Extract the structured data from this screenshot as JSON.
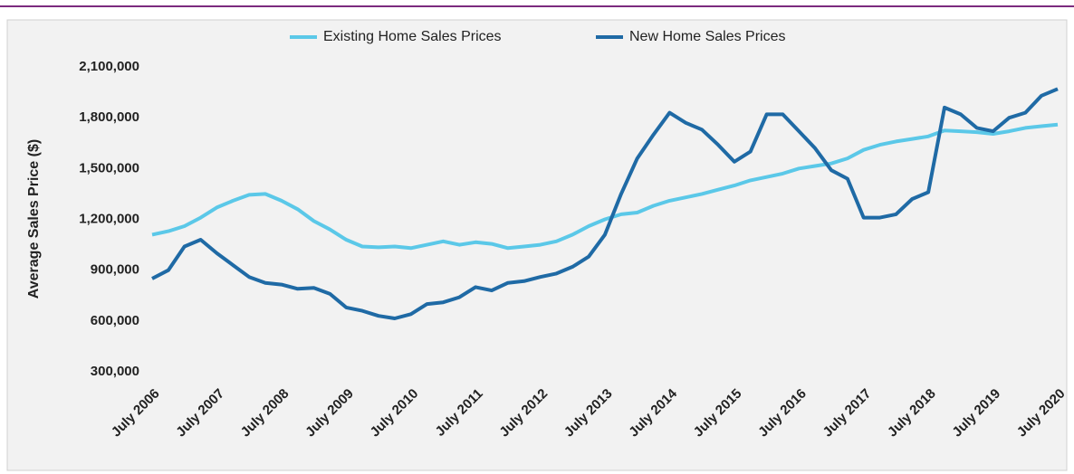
{
  "chart_data": {
    "type": "line",
    "y_label": "Average Sales Price ($)",
    "categories": [
      "July 2006",
      null,
      null,
      null,
      "July 2007",
      null,
      null,
      null,
      "July 2008",
      null,
      null,
      null,
      "July 2009",
      null,
      null,
      null,
      "July 2010",
      null,
      null,
      null,
      "July 2011",
      null,
      null,
      null,
      "July 2012",
      null,
      null,
      null,
      "July 2013",
      null,
      null,
      null,
      "July 2014",
      null,
      null,
      null,
      "July 2015",
      null,
      null,
      null,
      "July 2016",
      null,
      null,
      null,
      "July 2017",
      null,
      null,
      null,
      "July 2018",
      null,
      null,
      null,
      "July 2019",
      null,
      null,
      null,
      "July 2020"
    ],
    "series": [
      {
        "name": "Existing Home Sales Prices",
        "color": "#5bc8e8",
        "values": [
          1110000,
          1130000,
          1160000,
          1210000,
          1270000,
          1310000,
          1345000,
          1350000,
          1310000,
          1260000,
          1190000,
          1140000,
          1080000,
          1040000,
          1035000,
          1040000,
          1030000,
          1050000,
          1070000,
          1050000,
          1065000,
          1055000,
          1030000,
          1040000,
          1050000,
          1070000,
          1110000,
          1160000,
          1200000,
          1230000,
          1240000,
          1280000,
          1310000,
          1330000,
          1350000,
          1375000,
          1400000,
          1430000,
          1450000,
          1470000,
          1500000,
          1515000,
          1530000,
          1560000,
          1610000,
          1640000,
          1660000,
          1675000,
          1690000,
          1725000,
          1720000,
          1715000,
          1705000,
          1720000,
          1740000,
          1750000,
          1760000
        ]
      },
      {
        "name": "New Home Sales Prices",
        "color": "#1f6aa5",
        "values": [
          850000,
          900000,
          1040000,
          1080000,
          1000000,
          930000,
          860000,
          825000,
          815000,
          790000,
          795000,
          760000,
          680000,
          660000,
          630000,
          615000,
          640000,
          700000,
          710000,
          740000,
          800000,
          780000,
          825000,
          835000,
          860000,
          880000,
          920000,
          980000,
          1110000,
          1350000,
          1560000,
          1700000,
          1830000,
          1770000,
          1730000,
          1640000,
          1540000,
          1600000,
          1820000,
          1820000,
          1720000,
          1620000,
          1490000,
          1440000,
          1210000,
          1210000,
          1230000,
          1320000,
          1360000,
          1860000,
          1820000,
          1740000,
          1720000,
          1800000,
          1830000,
          1930000,
          1970000
        ]
      }
    ],
    "ylim": [
      300000,
      2100000
    ],
    "yticks": [
      {
        "value": 300000,
        "label": "300,000"
      },
      {
        "value": 600000,
        "label": "600,000"
      },
      {
        "value": 900000,
        "label": "900,000"
      },
      {
        "value": 1200000,
        "label": "1,200,000"
      },
      {
        "value": 1500000,
        "label": "1,500,000"
      },
      {
        "value": 1800000,
        "label": "1,800,000"
      },
      {
        "value": 2100000,
        "label": "2,100,000"
      }
    ],
    "grid": false,
    "legend": "top"
  }
}
